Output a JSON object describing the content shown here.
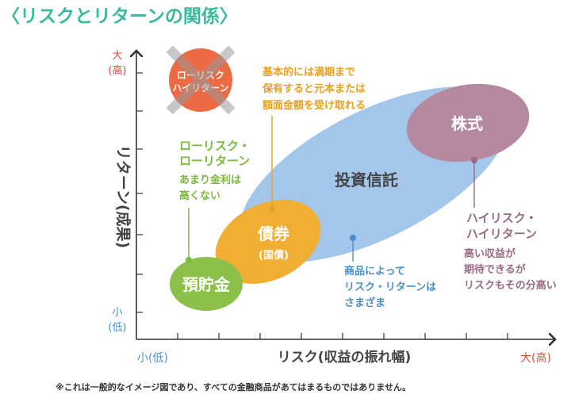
{
  "title": "〈リスクとリターンの関係〉",
  "colors": {
    "title": "#3bb8a0",
    "axis": "#333333",
    "red": "#e0483a",
    "blue": "#4a90c8",
    "orange": "#e8a020",
    "green": "#7aba3c",
    "purple": "#9a6a84",
    "deposit": "#8cc04a",
    "bond": "#f0ae32",
    "trust": "#a4c6ea",
    "stock": "#b58aa0"
  },
  "axes": {
    "y_title": "リターン(成果)",
    "x_title": "リスク(収益の振れ幅)",
    "y_high_1": "大",
    "y_high_2": "(高)",
    "y_low_1": "小",
    "y_low_2": "(低)",
    "x_low": "小(低)",
    "x_high": "大(高)"
  },
  "crossed_badge": {
    "line1": "ローリスク",
    "line2": "ハイリターン",
    "icon": "cross-mark-icon"
  },
  "assets": {
    "deposit": "預貯金",
    "bond": "債券",
    "bond_sub": "(国債)",
    "trust": "投資信託",
    "stock": "株式"
  },
  "notes": {
    "bond": [
      "基本的には満期まで",
      "保有すると元本または",
      "額面金額を受け取れる"
    ],
    "deposit_heading": [
      "ローリスク・",
      "ローリターン"
    ],
    "deposit_body": [
      "あまり金利は",
      "高くない"
    ],
    "trust": [
      "商品によって",
      "リスク・リターンは",
      "さまざま"
    ],
    "stock_heading": [
      "ハイリスク・",
      "ハイリターン"
    ],
    "stock_body": [
      "高い収益が",
      "期待できるが",
      "リスクもその分高い"
    ]
  },
  "footnote": "※これは一般的なイメージ図であり、すべての金融商品があてはまるものではありません。"
}
